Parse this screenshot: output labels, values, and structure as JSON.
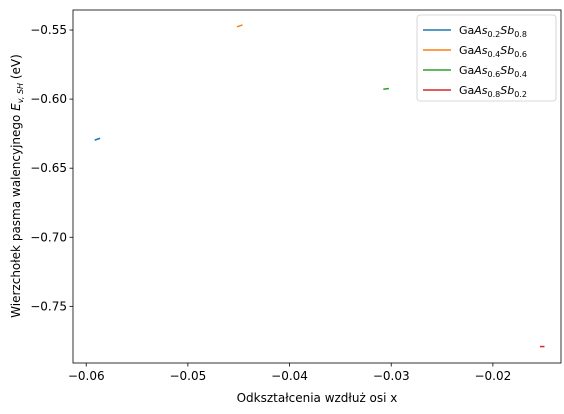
{
  "chart_data": {
    "type": "line",
    "title": "",
    "xlabel": "Odkształcenia wzdłuż osi x",
    "ylabel_main": "Wierzchołek pasma walencyjnego ",
    "ylabel_var": "E",
    "ylabel_sub": "v, SH",
    "ylabel_unit": " (eV)",
    "xlim": [
      -0.0613,
      -0.0133
    ],
    "ylim": [
      -0.791,
      -0.5355
    ],
    "xticks": [
      -0.06,
      -0.05,
      -0.04,
      -0.03,
      -0.02
    ],
    "xtick_labels": [
      "−0.06",
      "−0.05",
      "−0.04",
      "−0.03",
      "−0.02"
    ],
    "yticks": [
      -0.55,
      -0.6,
      -0.65,
      -0.7,
      -0.75
    ],
    "ytick_labels": [
      "−0.55",
      "−0.60",
      "−0.65",
      "−0.70",
      "−0.75"
    ],
    "grid": false,
    "legend_position": "top-right",
    "series": [
      {
        "name": "GaAs0.2Sb0.8",
        "legend": [
          "Ga",
          "As",
          "0.2",
          "Sb",
          "0.8"
        ],
        "color": "#1f77b4",
        "x": [
          -0.0591,
          -0.0587
        ],
        "y": [
          -0.6295,
          -0.6285
        ]
      },
      {
        "name": "GaAs0.4Sb0.6",
        "legend": [
          "Ga",
          "As",
          "0.4",
          "Sb",
          "0.6"
        ],
        "color": "#ff7f0e",
        "x": [
          -0.0451,
          -0.0447
        ],
        "y": [
          -0.5475,
          -0.5465
        ]
      },
      {
        "name": "GaAs0.6Sb0.4",
        "legend": [
          "Ga",
          "As",
          "0.6",
          "Sb",
          "0.4"
        ],
        "color": "#2ca02c",
        "x": [
          -0.0307,
          -0.0303
        ],
        "y": [
          -0.5928,
          -0.5924
        ]
      },
      {
        "name": "GaAs0.8Sb0.2",
        "legend": [
          "Ga",
          "As",
          "0.8",
          "Sb",
          "0.2"
        ],
        "color": "#d62728",
        "x": [
          -0.0153,
          -0.015
        ],
        "y": [
          -0.7791,
          -0.7791
        ]
      }
    ]
  }
}
